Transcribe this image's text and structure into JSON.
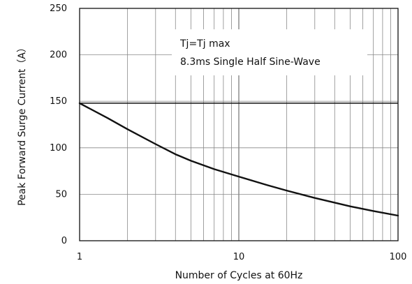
{
  "chart_data": {
    "type": "line",
    "xlabel": "Number of Cycles at 60Hz",
    "ylabel": "Peak Forward Surge Current（A）",
    "x_scale": "log",
    "xlim": [
      1,
      100
    ],
    "ylim": [
      0,
      250
    ],
    "x_ticks": [
      "1",
      "10",
      "100"
    ],
    "y_ticks": [
      "0",
      "50",
      "100",
      "150",
      "200",
      "250"
    ],
    "y_tick_values": [
      0,
      50,
      100,
      150,
      200,
      250
    ],
    "grid": true,
    "annotations": [
      "Tj=Tj max",
      "8.3ms Single Half Sine-Wave"
    ],
    "reference_lines": [
      {
        "axis": "y",
        "value": 148
      }
    ],
    "series": [
      {
        "x": [
          1,
          1.5,
          2,
          3,
          4,
          5,
          7,
          10,
          15,
          20,
          30,
          40,
          50,
          70,
          100
        ],
        "y": [
          148,
          132,
          120,
          104,
          93,
          86,
          77,
          69,
          60,
          54,
          46,
          41,
          37,
          32,
          27
        ],
        "color": "#111111"
      }
    ]
  }
}
